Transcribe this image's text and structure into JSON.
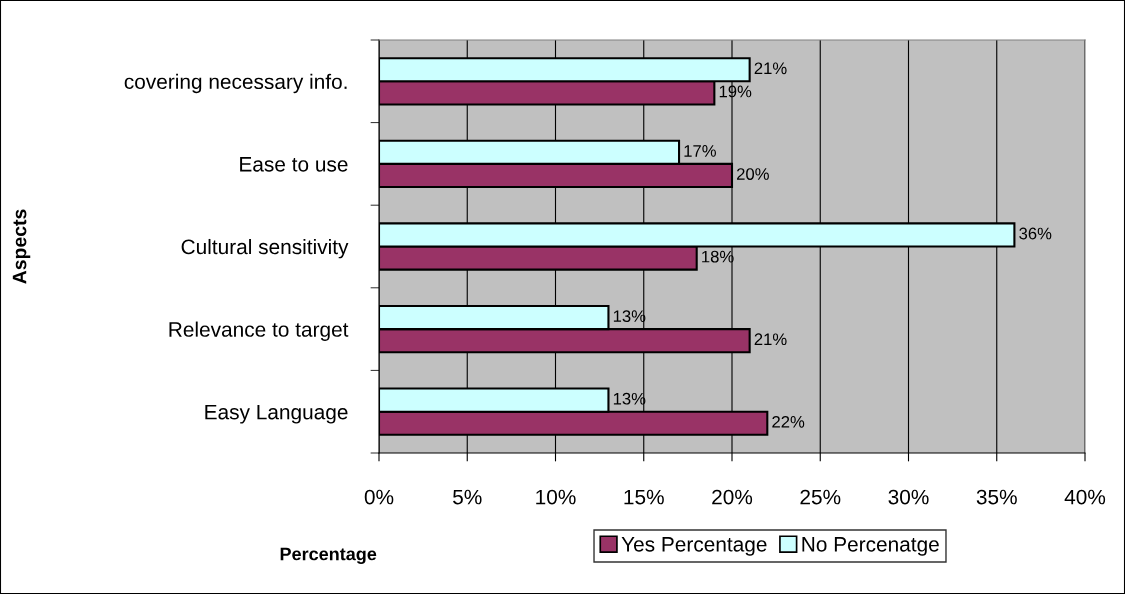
{
  "chart_data": {
    "type": "bar",
    "orientation": "horizontal",
    "categories": [
      "covering necessary info.",
      "Ease to use",
      "Cultural sensitivity",
      "Relevance to target",
      "Easy Language"
    ],
    "series": [
      {
        "name": "Yes Percentage",
        "color": "#993366",
        "values": [
          19,
          20,
          18,
          21,
          22
        ],
        "value_labels": [
          "19%",
          "20%",
          "18%",
          "21%",
          "22%"
        ]
      },
      {
        "name": "No Percenatge",
        "color": "#ccffff",
        "values": [
          21,
          17,
          36,
          13,
          13
        ],
        "value_labels": [
          "21%",
          "17%",
          "36%",
          "13%",
          "13%"
        ]
      }
    ],
    "xlabel": "Percentage",
    "ylabel": "Aspects",
    "xlim": [
      0,
      40
    ],
    "xticks": [
      {
        "value": 0,
        "label": "0%"
      },
      {
        "value": 5,
        "label": "5%"
      },
      {
        "value": 10,
        "label": "10%"
      },
      {
        "value": 15,
        "label": "15%"
      },
      {
        "value": 20,
        "label": "20%"
      },
      {
        "value": 25,
        "label": "25%"
      },
      {
        "value": 30,
        "label": "30%"
      },
      {
        "value": 35,
        "label": "35%"
      },
      {
        "value": 40,
        "label": "40%"
      }
    ],
    "grid": "x",
    "legend": "bottom"
  }
}
